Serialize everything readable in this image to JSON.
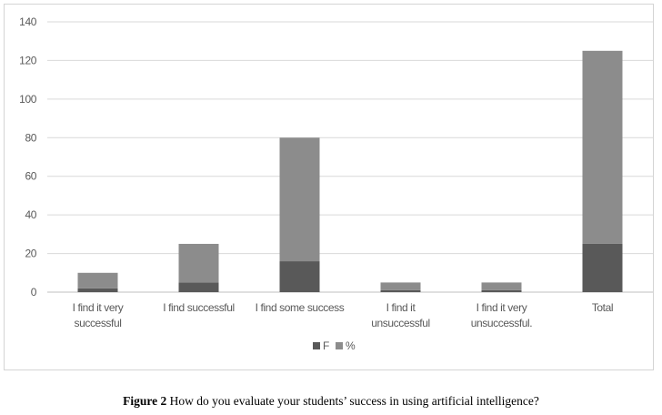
{
  "chart_data": {
    "type": "bar",
    "stacked": true,
    "categories": [
      [
        "I find it very",
        "successful"
      ],
      [
        "I find successful"
      ],
      [
        "I find some success"
      ],
      [
        "I find it",
        "unsuccessful"
      ],
      [
        "I find it very",
        "unsuccessful."
      ],
      [
        "Total"
      ]
    ],
    "series": [
      {
        "name": "F",
        "values": [
          2,
          5,
          16,
          1,
          1,
          25
        ],
        "color": "#595959"
      },
      {
        "name": "%",
        "values": [
          8,
          20,
          64,
          4,
          4,
          100
        ],
        "color": "#8c8c8c"
      }
    ],
    "ylim": [
      0,
      140
    ],
    "yticks": [
      0,
      20,
      40,
      60,
      80,
      100,
      120,
      140
    ],
    "grid": true,
    "legend_position": "bottom"
  },
  "caption": {
    "label": "Figure 2",
    "text": " How do you evaluate your students’ success in using artificial intelligence?"
  }
}
